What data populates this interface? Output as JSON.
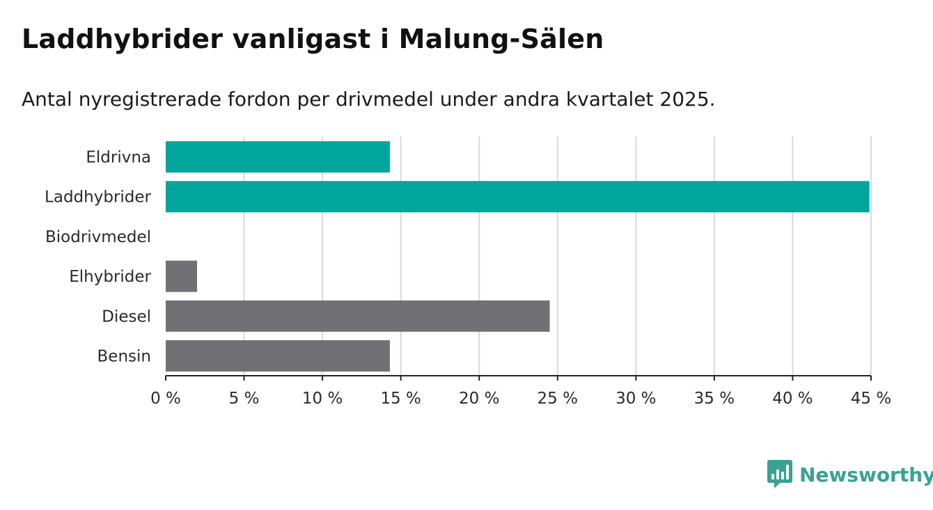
{
  "title": "Laddhybrider vanligast i Malung-Sälen",
  "subtitle": "Antal nyregistrerade fordon per drivmedel under andra kvartalet 2025.",
  "brand": {
    "name": "Newsworthy",
    "icon": "newsworthy-logo-icon",
    "color": "#3aa193"
  },
  "colors": {
    "highlight": "#00a69b",
    "default": "#707075",
    "grid": "#d9d9d9",
    "axis": "#222222"
  },
  "chart_data": {
    "type": "bar",
    "orientation": "horizontal",
    "categories": [
      "Eldrivna",
      "Laddhybrider",
      "Biodrivmedel",
      "Elhybrider",
      "Diesel",
      "Bensin"
    ],
    "values": [
      14.3,
      44.9,
      0,
      2.0,
      24.5,
      14.3
    ],
    "highlighted": [
      true,
      true,
      false,
      false,
      false,
      false
    ],
    "xlim": [
      0,
      45
    ],
    "ticks": [
      0,
      5,
      10,
      15,
      20,
      25,
      30,
      35,
      40,
      45
    ],
    "tick_labels": [
      "0 %",
      "5 %",
      "10 %",
      "15 %",
      "20 %",
      "25 %",
      "30 %",
      "35 %",
      "40 %",
      "45 %"
    ],
    "grid": true,
    "legend": "none"
  }
}
